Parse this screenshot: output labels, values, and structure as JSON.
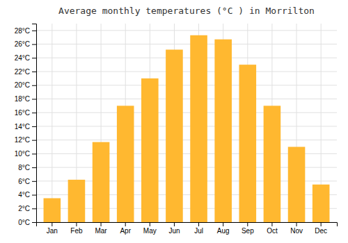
{
  "chart_data": {
    "type": "bar",
    "title": "Average monthly temperatures (°C ) in Morrilton",
    "categories": [
      "Jan",
      "Feb",
      "Mar",
      "Apr",
      "May",
      "Jun",
      "Jul",
      "Aug",
      "Sep",
      "Oct",
      "Nov",
      "Dec"
    ],
    "values": [
      3.5,
      6.2,
      11.7,
      17.0,
      21.0,
      25.2,
      27.3,
      26.7,
      23.0,
      17.0,
      11.0,
      5.5
    ],
    "color": "#FFB830",
    "ylim": [
      0,
      29
    ],
    "yticks": [
      {
        "value": 0,
        "label": "0°C"
      },
      {
        "value": 2,
        "label": "2°C"
      },
      {
        "value": 4,
        "label": "4°C"
      },
      {
        "value": 6,
        "label": "6°C"
      },
      {
        "value": 8,
        "label": "8°C"
      },
      {
        "value": 10,
        "label": "10°C"
      },
      {
        "value": 12,
        "label": "12°C"
      },
      {
        "value": 14,
        "label": "14°C"
      },
      {
        "value": 16,
        "label": "16°C"
      },
      {
        "value": 18,
        "label": "18°C"
      },
      {
        "value": 20,
        "label": "20°C"
      },
      {
        "value": 22,
        "label": "22°C"
      },
      {
        "value": 24,
        "label": "24°C"
      },
      {
        "value": 26,
        "label": "26°C"
      },
      {
        "value": 28,
        "label": "28°C"
      }
    ],
    "grid": true
  }
}
